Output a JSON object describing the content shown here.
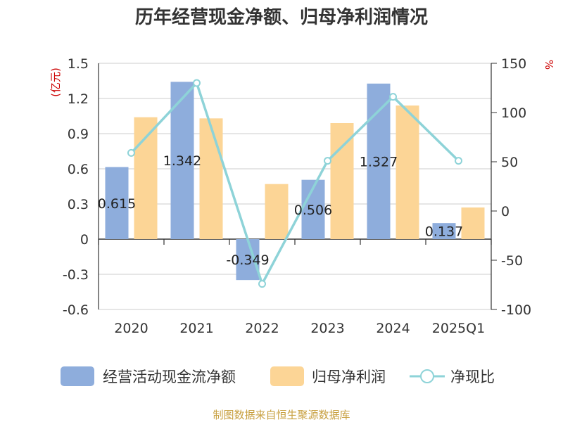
{
  "chart_data": {
    "type": "bar",
    "title": "历年经营现金净额、归母净利润情况",
    "categories": [
      "2020",
      "2021",
      "2022",
      "2023",
      "2024",
      "2025Q1"
    ],
    "y_left": {
      "label": "(亿元)",
      "ylim": [
        -0.6,
        1.5
      ],
      "ticks": [
        "1.5",
        "1.2",
        "0.9",
        "0.6",
        "0.3",
        "0",
        "-0.3",
        "-0.6"
      ],
      "tick_values": [
        1.5,
        1.2,
        0.9,
        0.6,
        0.3,
        0,
        -0.3,
        -0.6
      ]
    },
    "y_right": {
      "label": "%",
      "ylim": [
        -100,
        150
      ],
      "ticks": [
        "150",
        "100",
        "50",
        "0",
        "-50",
        "-100"
      ],
      "tick_values": [
        150,
        100,
        50,
        0,
        -50,
        -100
      ]
    },
    "series": [
      {
        "name": "经营活动现金流净额",
        "type": "bar",
        "axis": "left",
        "color": "#8eaddc",
        "values": [
          0.615,
          1.342,
          -0.349,
          0.506,
          1.327,
          0.137
        ],
        "labels": [
          "0.615",
          "1.342",
          "-0.349",
          "0.506",
          "1.327",
          "0.137"
        ]
      },
      {
        "name": "归母净利润",
        "type": "bar",
        "axis": "left",
        "color": "#fcd596",
        "values": [
          1.04,
          1.03,
          0.47,
          0.99,
          1.14,
          0.27
        ]
      },
      {
        "name": "净现比",
        "type": "line",
        "axis": "right",
        "color": "#8ed3d8",
        "values": [
          59,
          130,
          -74,
          51,
          116,
          51
        ]
      }
    ],
    "grid": true,
    "legend_position": "bottom"
  },
  "source": "制图数据来自恒生聚源数据库"
}
